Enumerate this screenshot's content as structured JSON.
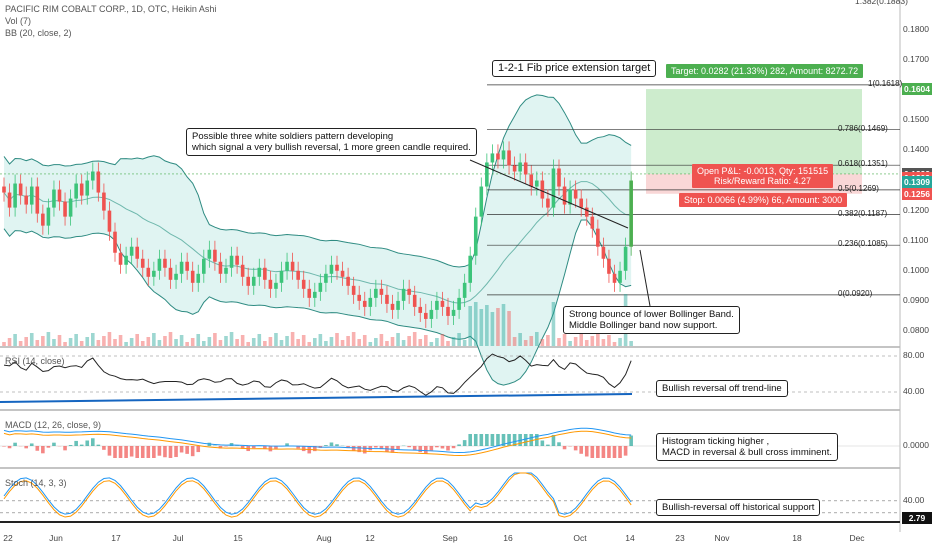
{
  "header": {
    "title": "PACIFIC RIM COBALT CORP., 1D, OTC, Heikin Ashi",
    "vol": "Vol (7)",
    "bb": "BB (20, close, 2)",
    "rsi": "RSI (14, close)",
    "macd": "MACD (12, 26, close, 9)",
    "stoch": "Stoch (14, 3, 3)"
  },
  "annotations": {
    "fib_title": "1-2-1 Fib price extension target",
    "pattern_line1": "Possible three white soldiers pattern developing",
    "pattern_line2": "which signal a very bullish reversal, 1 more green candle required.",
    "bounce_line1": "Strong bounce of lower Bollinger Band.",
    "bounce_line2": "Middle Bollinger band now support.",
    "rsi_note": "Bullish reversal off trend-line",
    "macd_line1": "Histogram ticking higher ,",
    "macd_line2": "MACD in reversal & bull cross imminent.",
    "stoch_note": "Bullish-reversal off historical support"
  },
  "position": {
    "target": "Target: 0.0282 (21.33%) 282, Amount: 8272.72",
    "open_pnl": "Open P&L: -0.0013, Qty: 151515",
    "risk_reward": "Risk/Reward Ratio: 4.27",
    "stop": "Stop: 0.0066 (4.99%) 66, Amount: 3000"
  },
  "colors": {
    "up": "#26a69a",
    "up_bright": "#4caf50",
    "down": "#ef5350",
    "bb_line": "#2e8b82",
    "bb_fill": "#e0f4f2",
    "target_fill": "#cdeccd",
    "stop_fill": "#f9d7d7",
    "rsi_line": "#222222",
    "trend_line": "#1565c0",
    "macd_line": "#2196f3",
    "signal_line": "#ff9800"
  },
  "chart_data": {
    "type": "candlestick",
    "title": "PACIFIC RIM COBALT CORP., 1D, OTC, Heikin Ashi",
    "ylim": [
      0.075,
      0.19
    ],
    "y_ticks": [
      "0.1800",
      "0.1700",
      "0.1600",
      "0.1500",
      "0.1400",
      "0.1200",
      "0.1100",
      "0.1000",
      "0.0900",
      "0.0800"
    ],
    "y_top_partial": "1.382(0.1883)",
    "x_ticks": [
      "22",
      "Jun",
      "17",
      "Jul",
      "15",
      "Aug",
      "12",
      "Sep",
      "16",
      "Oct",
      "14",
      "23",
      "Nov",
      "18",
      "Dec"
    ],
    "price_tags": [
      {
        "label": "0.1604",
        "value": 0.1604,
        "color": "#4caf50"
      },
      {
        "label": "0.1322",
        "value": 0.1322,
        "color": "#555555"
      },
      {
        "label": "0.1309",
        "value": 0.1309,
        "color": "#ef5350"
      },
      {
        "label": "0.1309",
        "value": 0.1295,
        "color": "#26a69a"
      },
      {
        "label": "0.1256",
        "value": 0.1256,
        "color": "#ef5350"
      }
    ],
    "fib_levels": [
      {
        "label": "1(0.1618)",
        "value": 0.1618
      },
      {
        "label": "0.786(0.1469)",
        "value": 0.1469
      },
      {
        "label": "0.618(0.1351)",
        "value": 0.1351
      },
      {
        "label": "0.5(0.1269)",
        "value": 0.1269
      },
      {
        "label": "0.382(0.1187)",
        "value": 0.1187
      },
      {
        "label": "0.236(0.1085)",
        "value": 0.1085
      },
      {
        "label": "0(0.0920)",
        "value": 0.092
      }
    ],
    "target_box": {
      "entry": 0.1322,
      "target": 0.1604,
      "stop": 0.1256
    },
    "closes": [
      0.126,
      0.121,
      0.129,
      0.125,
      0.122,
      0.128,
      0.119,
      0.115,
      0.121,
      0.127,
      0.123,
      0.118,
      0.124,
      0.129,
      0.125,
      0.13,
      0.133,
      0.126,
      0.12,
      0.113,
      0.106,
      0.102,
      0.105,
      0.108,
      0.104,
      0.101,
      0.098,
      0.1,
      0.104,
      0.101,
      0.097,
      0.099,
      0.103,
      0.1,
      0.096,
      0.099,
      0.104,
      0.107,
      0.103,
      0.099,
      0.101,
      0.105,
      0.102,
      0.098,
      0.095,
      0.098,
      0.101,
      0.097,
      0.094,
      0.096,
      0.1,
      0.103,
      0.1,
      0.097,
      0.094,
      0.091,
      0.093,
      0.096,
      0.099,
      0.102,
      0.1,
      0.098,
      0.095,
      0.092,
      0.09,
      0.088,
      0.091,
      0.094,
      0.092,
      0.089,
      0.087,
      0.09,
      0.094,
      0.092,
      0.088,
      0.086,
      0.084,
      0.087,
      0.09,
      0.088,
      0.085,
      0.087,
      0.091,
      0.096,
      0.105,
      0.118,
      0.128,
      0.136,
      0.139,
      0.137,
      0.14,
      0.135,
      0.133,
      0.136,
      0.132,
      0.128,
      0.13,
      0.124,
      0.121,
      0.134,
      0.128,
      0.122,
      0.127,
      0.124,
      0.121,
      0.118,
      0.114,
      0.108,
      0.104,
      0.099,
      0.096,
      0.1,
      0.108,
      0.13
    ],
    "rsi": {
      "levels": [
        "80.00",
        "40.00"
      ]
    },
    "macd": {
      "levels": [
        "0.0000"
      ]
    },
    "stoch": {
      "levels": [
        "40.00"
      ],
      "last_tag": "2.79"
    }
  }
}
